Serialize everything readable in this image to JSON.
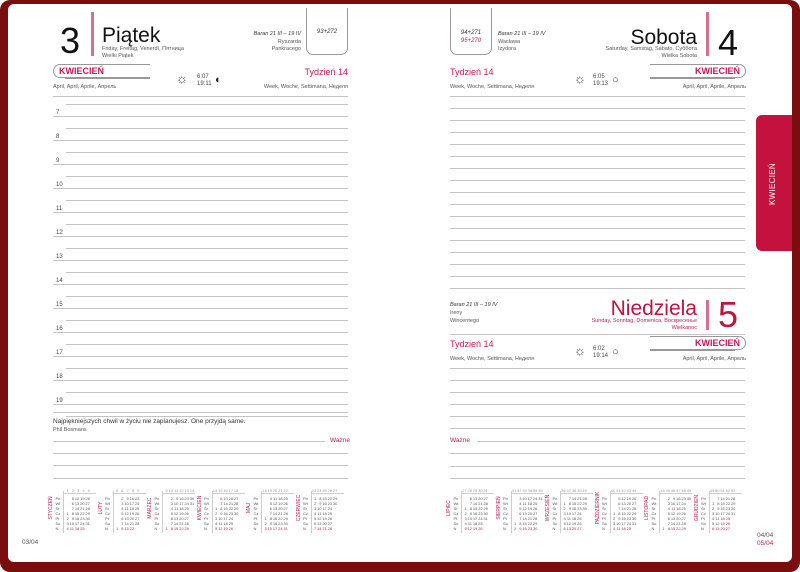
{
  "left_page": {
    "day_number": "3",
    "day_name": "Piątek",
    "day_translations": "Friday, Freitag, Venerdì, Пятница",
    "holiday": "Wielki Piątek",
    "zodiac": "Baran 21 III – 19 IV",
    "namedays": [
      "Ryszarda",
      "Pankracego"
    ],
    "day_count": "93+272",
    "month": "KWIECIEŃ",
    "month_translations": "April, April, Aprile, Апрель",
    "week": "Tydzień 14",
    "week_translations": "Week, Woche, Settimana, Неделя",
    "sunrise": "6:07",
    "sunset": "19:11",
    "moon_phase": "first-quarter",
    "hours": [
      "7",
      "8",
      "9",
      "10",
      "11",
      "12",
      "13",
      "14",
      "15",
      "16",
      "17",
      "18",
      "19"
    ],
    "quote": "Najpiękniejszych chwil w życiu nie zaplanujesz. One przyjdą same.",
    "quote_author": "Phil Bosmans",
    "important_label": "Ważne",
    "page_number": "03/04"
  },
  "right_page": {
    "saturday": {
      "day_number": "4",
      "day_name": "Sobota",
      "day_translations": "Saturday, Samstag, Sabato, Суббота",
      "holiday": "Wielka Sobota",
      "zodiac": "Baran 21 III – 19 IV",
      "namedays": [
        "Wacława",
        "Izydora"
      ],
      "day_count": "94+271",
      "day_count_2": "95+270",
      "week": "Tydzień 14",
      "week_translations": "Week, Woche, Settimana, Неделя",
      "sunrise": "6:05",
      "sunset": "19:13",
      "month": "KWIECIEŃ",
      "month_translations": "April, April, Aprile, Апрель"
    },
    "sunday": {
      "day_number": "5",
      "day_name": "Niedziela",
      "day_translations": "Sunday, Sonntag, Domenica, Воскресенье",
      "holiday": "Wielkanoc",
      "zodiac": "Baran 21 III – 19 IV",
      "namedays": [
        "Ireny",
        "Wincentego"
      ],
      "week": "Tydzień 14",
      "week_translations": "Week, Woche, Settimana, Неделя",
      "sunrise": "6:02",
      "sunset": "19:14",
      "month": "KWIECIEŃ",
      "month_translations": "April, April, Aprile, Апрель"
    },
    "important_label": "Ważne",
    "page_numbers": [
      "04/04",
      "05/04"
    ]
  },
  "side_tab": "KWIECIEŃ",
  "colors": {
    "accent": "#c8185a",
    "frame": "#7a0e0e",
    "tab": "#c2123d"
  },
  "weekday_labels": [
    "Pn",
    "Wt",
    "Śr",
    "Cz",
    "Pt",
    "So",
    "N"
  ],
  "mini_calendars_left": [
    {
      "month": "STYCZEŃ",
      "weeks": "1 2 3 4 5",
      "rows": [
        "5 12 19 26",
        "6 13 20 27",
        "7 14 21 28",
        "1 8 15 22 29",
        "2 9 16 23 30",
        "3 10 17 24 31",
        "4 11 18 25"
      ],
      "holidays": [
        "1",
        "6"
      ]
    },
    {
      "month": "LUTY",
      "weeks": "5 6 7 8 9",
      "rows": [
        "2 9 16 23",
        "3 10 17 24",
        "4 11 18 25",
        "5 12 19 26",
        "6 13 20 27",
        "7 14 21 28",
        "1 8 15 22"
      ],
      "holidays": []
    },
    {
      "month": "MARZEC",
      "weeks": "9 10 11 12 13 14",
      "rows": [
        "2 9 16 23 30",
        "3 10 17 24 31",
        "4 11 18 25",
        "5 12 19 26",
        "6 13 20 27",
        "7 14 21 28",
        "1 8 15 22 29"
      ],
      "holidays": []
    },
    {
      "month": "KWIECIEŃ",
      "weeks": "14 15 16 17 18",
      "rows": [
        "6 13 20 27",
        "7 14 21 28",
        "1 8 15 22 29",
        "2 9 16 23 30",
        "3 10 17 24",
        "4 11 18 25",
        "5 12 19 26"
      ],
      "holidays": [
        "6"
      ]
    },
    {
      "month": "MAJ",
      "weeks": "18 19 20 21 22",
      "rows": [
        "4 11 18 25",
        "5 12 19 26",
        "6 13 20 27",
        "7 14 21 28",
        "1 8 15 22 29",
        "2 9 16 23 30",
        "3 10 17 24 31"
      ],
      "holidays": [
        "1",
        "3"
      ]
    },
    {
      "month": "CZERWIEC",
      "weeks": "23 24 25 26 27",
      "rows": [
        "1 8 15 22 29",
        "2 9 16 23 30",
        "3 10 17 24",
        "4 11 18 25",
        "5 12 19 26",
        "6 13 20 27",
        "7 14 21 28"
      ],
      "holidays": [
        "4"
      ]
    }
  ],
  "mini_calendars_right": [
    {
      "month": "LIPIEC",
      "weeks": "27 28 29 30 31",
      "rows": [
        "6 13 20 27",
        "7 14 21 28",
        "1 8 15 22 29",
        "2 9 16 23 30",
        "3 10 17 24 31",
        "4 11 18 25",
        "5 12 19 26"
      ],
      "holidays": []
    },
    {
      "month": "SIERPIEŃ",
      "weeks": "31 32 33 34 35 36",
      "rows": [
        "3 10 17 24 31",
        "4 11 18 25",
        "5 12 19 26",
        "6 13 20 27",
        "7 14 21 28",
        "1 8 15 22 29",
        "2 9 16 23 30"
      ],
      "holidays": [
        "15"
      ]
    },
    {
      "month": "WRZESIEŃ",
      "weeks": "36 37 38 39 40",
      "rows": [
        "7 14 21 28",
        "1 8 15 22 29",
        "2 9 16 23 30",
        "3 10 17 24",
        "4 11 18 25",
        "5 12 19 26",
        "6 13 20 27"
      ],
      "holidays": []
    },
    {
      "month": "PAŹDZIERNIK",
      "weeks": "40 41 42 43 44",
      "rows": [
        "5 12 19 26",
        "6 13 20 27",
        "7 14 21 28",
        "1 8 15 22 29",
        "2 9 16 23 30",
        "3 10 17 24 31",
        "4 11 18 25"
      ],
      "holidays": []
    },
    {
      "month": "LISTOPAD",
      "weeks": "44 45 46 47 48 49",
      "rows": [
        "2 9 16 23 30",
        "3 10 17 24",
        "4 11 18 25",
        "5 12 19 26",
        "6 13 20 27",
        "7 14 21 28",
        "1 8 15 22 29"
      ],
      "holidays": [
        "11"
      ]
    },
    {
      "month": "GRUDZIEŃ",
      "weeks": "49 50 51 52 53",
      "rows": [
        "7 14 21 28",
        "1 8 15 22 29",
        "2 9 16 23 30",
        "3 10 17 24 31",
        "4 11 18 25",
        "5 12 19 26",
        "6 13 20 27"
      ],
      "holidays": [
        "25",
        "26"
      ]
    }
  ]
}
